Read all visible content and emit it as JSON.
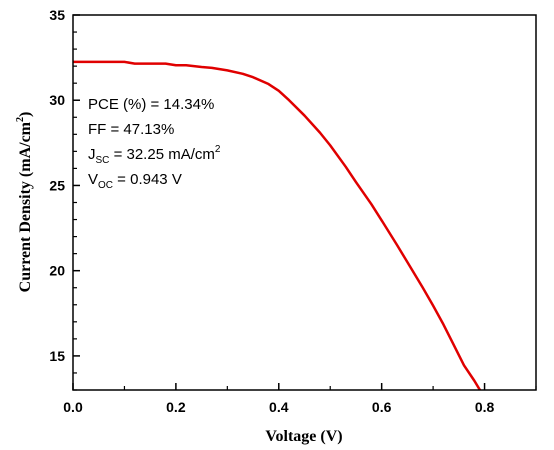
{
  "chart_data": {
    "type": "line",
    "xlabel": "Voltage (V)",
    "ylabel": {
      "main": "Current Density (mA/cm",
      "sup": "2",
      "close": ")"
    },
    "xlim": [
      0.0,
      0.9
    ],
    "ylim": [
      13,
      35
    ],
    "x_ticks": [
      {
        "value": 0.0,
        "label": "0.0"
      },
      {
        "value": 0.2,
        "label": "0.2"
      },
      {
        "value": 0.4,
        "label": "0.4"
      },
      {
        "value": 0.6,
        "label": "0.6"
      },
      {
        "value": 0.8,
        "label": "0.8"
      }
    ],
    "y_ticks": [
      {
        "value": 15,
        "label": "15"
      },
      {
        "value": 20,
        "label": "20"
      },
      {
        "value": 25,
        "label": "25"
      },
      {
        "value": 30,
        "label": "30"
      },
      {
        "value": 35,
        "label": "35"
      }
    ],
    "grid": false,
    "series": [
      {
        "color": "#e00000",
        "x": [
          0.0,
          0.05,
          0.1,
          0.12,
          0.15,
          0.18,
          0.2,
          0.22,
          0.25,
          0.27,
          0.3,
          0.33,
          0.35,
          0.38,
          0.4,
          0.42,
          0.45,
          0.48,
          0.5,
          0.53,
          0.55,
          0.58,
          0.6,
          0.63,
          0.65,
          0.68,
          0.7,
          0.72,
          0.74,
          0.76,
          0.78,
          0.79,
          0.795
        ],
        "y": [
          32.25,
          32.25,
          32.25,
          32.15,
          32.15,
          32.15,
          32.05,
          32.05,
          31.95,
          31.9,
          31.75,
          31.55,
          31.35,
          30.95,
          30.55,
          30.0,
          29.1,
          28.1,
          27.35,
          26.1,
          25.2,
          23.9,
          22.95,
          21.5,
          20.5,
          19.0,
          17.95,
          16.85,
          15.65,
          14.45,
          13.55,
          13.05,
          12.8
        ]
      }
    ],
    "annotations": {
      "pce": "PCE (%) = 14.34%",
      "ff": "FF = 47.13%",
      "jsc": {
        "base": "J",
        "sub": "SC",
        "rest": " = 32.25 mA/cm",
        "sup": "2"
      },
      "voc": {
        "base": "V",
        "sub": "OC",
        "rest": " = 0.943 V"
      }
    }
  }
}
